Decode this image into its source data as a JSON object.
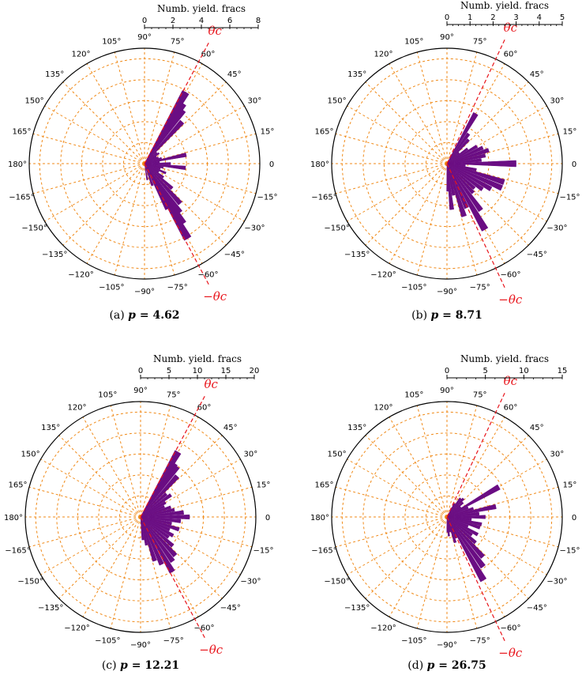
{
  "chart_data": [
    {
      "type": "polar-bar",
      "caption": "(a) p = 4.62",
      "caption_prefix": "(a) ",
      "caption_var": "p",
      "caption_value": "= 4.62",
      "radial_axis_title": "Numb. yield. fracs",
      "radial_ticks": [
        "0",
        "2",
        "4",
        "6",
        "8"
      ],
      "rmax": 8.4,
      "critical_angle_deg": 62,
      "critical_labels": [
        "θc",
        "−θc"
      ],
      "bars": [
        {
          "angle": 60,
          "value": 6.0
        },
        {
          "angle": 57,
          "value": 5.2
        },
        {
          "angle": 54,
          "value": 4.8
        },
        {
          "angle": 48,
          "value": 4.1
        },
        {
          "angle": 42,
          "value": 1.2
        },
        {
          "angle": 36,
          "value": 1.3
        },
        {
          "angle": 30,
          "value": 1.0
        },
        {
          "angle": 24,
          "value": 1.1
        },
        {
          "angle": 18,
          "value": 1.3
        },
        {
          "angle": 12,
          "value": 3.1
        },
        {
          "angle": 6,
          "value": 1.1
        },
        {
          "angle": 0,
          "value": 1.9
        },
        {
          "angle": -6,
          "value": 3.0
        },
        {
          "angle": -12,
          "value": 1.4
        },
        {
          "angle": -18,
          "value": 1.2
        },
        {
          "angle": -24,
          "value": 1.7
        },
        {
          "angle": -30,
          "value": 1.2
        },
        {
          "angle": -36,
          "value": 1.7
        },
        {
          "angle": -42,
          "value": 2.7
        },
        {
          "angle": -48,
          "value": 3.9
        },
        {
          "angle": -54,
          "value": 4.4
        },
        {
          "angle": -57,
          "value": 5.2
        },
        {
          "angle": -60,
          "value": 6.3
        },
        {
          "angle": -63,
          "value": 3.7
        },
        {
          "angle": -70,
          "value": 1.7
        },
        {
          "angle": -80,
          "value": 1.2
        }
      ],
      "angle_labels": [
        "90°",
        "105°",
        "120°",
        "135°",
        "150°",
        "165°",
        "180°",
        "−165°",
        "−150°",
        "−135°",
        "−120°",
        "−105°",
        "−90°",
        "−75°",
        "−60°",
        "−45°",
        "−30°",
        "−15°",
        "0",
        "15°",
        "30°",
        "45°",
        "60°",
        "75°"
      ]
    },
    {
      "type": "polar-bar",
      "caption": "(b) p = 8.71",
      "caption_prefix": "(b) ",
      "caption_var": "p",
      "caption_value": "= 8.71",
      "radial_axis_title": "Numb. yield. fracs",
      "radial_ticks": [
        "0",
        "1",
        "2",
        "3",
        "4",
        "5"
      ],
      "rmax": 5.0,
      "critical_angle_deg": 65,
      "critical_labels": [
        "θc",
        "−θc"
      ],
      "bars": [
        {
          "angle": 60,
          "value": 2.5
        },
        {
          "angle": 54,
          "value": 1.6
        },
        {
          "angle": 48,
          "value": 1.4
        },
        {
          "angle": 42,
          "value": 0.7
        },
        {
          "angle": 36,
          "value": 1.1
        },
        {
          "angle": 30,
          "value": 1.5
        },
        {
          "angle": 24,
          "value": 1.7
        },
        {
          "angle": 18,
          "value": 1.9
        },
        {
          "angle": 12,
          "value": 1.7
        },
        {
          "angle": 6,
          "value": 1.5
        },
        {
          "angle": 0,
          "value": 3.0
        },
        {
          "angle": -6,
          "value": 0.8
        },
        {
          "angle": -12,
          "value": 1.3
        },
        {
          "angle": -18,
          "value": 2.6
        },
        {
          "angle": -24,
          "value": 2.6
        },
        {
          "angle": -30,
          "value": 2.2
        },
        {
          "angle": -36,
          "value": 1.9
        },
        {
          "angle": -42,
          "value": 1.6
        },
        {
          "angle": -48,
          "value": 1.7
        },
        {
          "angle": -54,
          "value": 2.5
        },
        {
          "angle": -60,
          "value": 3.3
        },
        {
          "angle": -66,
          "value": 2.1
        },
        {
          "angle": -72,
          "value": 2.4
        },
        {
          "angle": -78,
          "value": 1.4
        },
        {
          "angle": -84,
          "value": 2.0
        },
        {
          "angle": -88,
          "value": 1.2
        }
      ],
      "angle_labels": [
        "90°",
        "105°",
        "120°",
        "135°",
        "150°",
        "165°",
        "180°",
        "−165°",
        "−150°",
        "−135°",
        "−120°",
        "−105°",
        "−90°",
        "−75°",
        "−60°",
        "−45°",
        "−30°",
        "−15°",
        "0",
        "15°",
        "30°",
        "45°",
        "60°",
        "75°"
      ]
    },
    {
      "type": "polar-bar",
      "caption": "(c) p = 12.21",
      "caption_prefix": "(c) ",
      "caption_var": "p",
      "caption_value": "= 12.21",
      "radial_axis_title": "Numb. yield. fracs",
      "radial_ticks": [
        "0",
        "5",
        "10",
        "15",
        "20"
      ],
      "rmax": 20.0,
      "critical_angle_deg": 62,
      "critical_labels": [
        "θc",
        "−θc"
      ],
      "bars": [
        {
          "angle": 60,
          "value": 13.0
        },
        {
          "angle": 57,
          "value": 11.0
        },
        {
          "angle": 54,
          "value": 10.8
        },
        {
          "angle": 48,
          "value": 9.5
        },
        {
          "angle": 42,
          "value": 6.0
        },
        {
          "angle": 36,
          "value": 6.5
        },
        {
          "angle": 30,
          "value": 5.0
        },
        {
          "angle": 24,
          "value": 4.5
        },
        {
          "angle": 18,
          "value": 5.5
        },
        {
          "angle": 12,
          "value": 6.0
        },
        {
          "angle": 6,
          "value": 7.5
        },
        {
          "angle": 0,
          "value": 8.5
        },
        {
          "angle": -6,
          "value": 7.0
        },
        {
          "angle": -12,
          "value": 5.5
        },
        {
          "angle": -18,
          "value": 7.0
        },
        {
          "angle": -24,
          "value": 5.5
        },
        {
          "angle": -30,
          "value": 6.5
        },
        {
          "angle": -36,
          "value": 6.0
        },
        {
          "angle": -42,
          "value": 7.5
        },
        {
          "angle": -48,
          "value": 9.0
        },
        {
          "angle": -54,
          "value": 9.5
        },
        {
          "angle": -60,
          "value": 11.0
        },
        {
          "angle": -66,
          "value": 9.0
        },
        {
          "angle": -72,
          "value": 8.0
        },
        {
          "angle": -78,
          "value": 5.0
        },
        {
          "angle": -84,
          "value": 4.0
        }
      ],
      "angle_labels": [
        "90°",
        "105°",
        "120°",
        "135°",
        "150°",
        "165°",
        "180°",
        "−165°",
        "−150°",
        "−135°",
        "−120°",
        "−105°",
        "−90°",
        "−75°",
        "−60°",
        "−45°",
        "−30°",
        "−15°",
        "0",
        "15°",
        "30°",
        "45°",
        "60°",
        "75°"
      ]
    },
    {
      "type": "polar-bar",
      "caption": "(d) p = 26.75",
      "caption_prefix": "(d) ",
      "caption_var": "p",
      "caption_value": "= 26.75",
      "radial_axis_title": "Numb. yield. fracs",
      "radial_ticks": [
        "0",
        "5",
        "10",
        "15"
      ],
      "rmax": 15.0,
      "critical_angle_deg": 65,
      "critical_labels": [
        "θc",
        "−θc"
      ],
      "bars": [
        {
          "angle": 60,
          "value": 2.0
        },
        {
          "angle": 54,
          "value": 3.0
        },
        {
          "angle": 48,
          "value": 3.2
        },
        {
          "angle": 42,
          "value": 2.8
        },
        {
          "angle": 36,
          "value": 2.2
        },
        {
          "angle": 30,
          "value": 7.8
        },
        {
          "angle": 24,
          "value": 3.0
        },
        {
          "angle": 18,
          "value": 3.6
        },
        {
          "angle": 12,
          "value": 6.5
        },
        {
          "angle": 6,
          "value": 4.2
        },
        {
          "angle": 0,
          "value": 5.0
        },
        {
          "angle": -6,
          "value": 3.2
        },
        {
          "angle": -12,
          "value": 4.6
        },
        {
          "angle": -18,
          "value": 4.5
        },
        {
          "angle": -24,
          "value": 3.0
        },
        {
          "angle": -30,
          "value": 4.6
        },
        {
          "angle": -36,
          "value": 4.0
        },
        {
          "angle": -42,
          "value": 5.0
        },
        {
          "angle": -48,
          "value": 7.0
        },
        {
          "angle": -54,
          "value": 8.0
        },
        {
          "angle": -60,
          "value": 9.5
        },
        {
          "angle": -66,
          "value": 3.0
        },
        {
          "angle": -72,
          "value": 3.5
        },
        {
          "angle": -78,
          "value": 2.0
        },
        {
          "angle": -84,
          "value": 2.5
        },
        {
          "angle": -88,
          "value": 2.0
        }
      ],
      "angle_labels": [
        "90°",
        "105°",
        "120°",
        "135°",
        "150°",
        "165°",
        "180°",
        "−165°",
        "−150°",
        "−135°",
        "−120°",
        "−105°",
        "−90°",
        "−75°",
        "−60°",
        "−45°",
        "−30°",
        "−15°",
        "0",
        "15°",
        "30°",
        "45°",
        "60°",
        "75°"
      ]
    }
  ],
  "colors": {
    "bar": "#6a0d83",
    "grid": "#f08a18",
    "critical": "#e8141b",
    "frame": "#000000"
  }
}
